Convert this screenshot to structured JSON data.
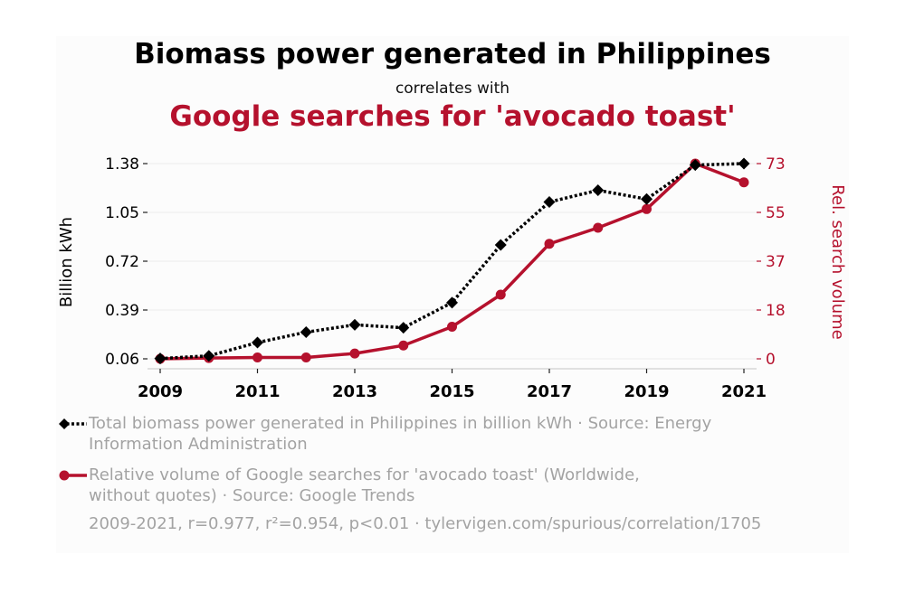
{
  "title": "Biomass power generated in Philippines",
  "subtitle": "correlates with",
  "title2": "Google searches for 'avocado toast'",
  "chart_data": {
    "type": "line",
    "x": [
      2009,
      2010,
      2011,
      2012,
      2013,
      2014,
      2015,
      2016,
      2017,
      2018,
      2019,
      2020,
      2021
    ],
    "x_ticks": [
      "2009",
      "2011",
      "2013",
      "2015",
      "2017",
      "2019",
      "2021"
    ],
    "left_axis": {
      "label": "Billion kWh",
      "ticks": [
        "0.06",
        "0.39",
        "0.72",
        "1.05",
        "1.38"
      ],
      "range": [
        0.06,
        1.38
      ]
    },
    "right_axis": {
      "label": "Rel. search volume",
      "ticks": [
        "0",
        "18",
        "37",
        "55",
        "73"
      ],
      "range": [
        0,
        73
      ]
    },
    "series": [
      {
        "name": "Total biomass power generated in Philippines in billion kWh · Source: Energy Information Administration",
        "axis": "left",
        "color": "#000000",
        "style": "dotted",
        "marker": "diamond",
        "values": [
          0.062,
          0.08,
          0.17,
          0.24,
          0.29,
          0.27,
          0.44,
          0.83,
          1.12,
          1.2,
          1.14,
          1.37,
          1.38
        ]
      },
      {
        "name": "Relative volume of Google searches for 'avocado toast' (Worldwide, without quotes) · Source: Google Trends",
        "axis": "right",
        "color": "#b5112d",
        "style": "solid",
        "marker": "circle",
        "values": [
          0,
          0.3,
          0.5,
          0.5,
          2,
          5,
          12,
          24,
          43,
          49,
          56,
          73,
          66
        ]
      }
    ],
    "grid": true
  },
  "legend": [
    {
      "line1": "Total biomass power generated in Philippines in billion kWh · Source: Energy",
      "line2": "Information Administration"
    },
    {
      "line1": "Relative volume of Google searches for 'avocado toast' (Worldwide,",
      "line2": "without quotes) · Source: Google Trends"
    }
  ],
  "footer": "2009-2021, r=0.977, r²=0.954, p<0.01 · tylervigen.com/spurious/correlation/1705"
}
